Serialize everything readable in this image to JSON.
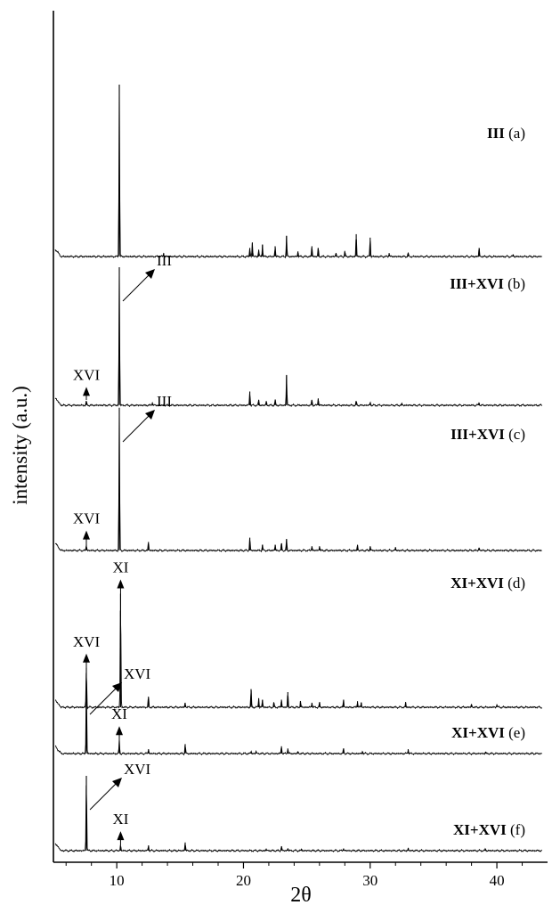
{
  "chart_data": {
    "type": "line",
    "xlabel": "2θ",
    "ylabel": "intensity (a.u.)",
    "xlim": [
      5,
      44
    ],
    "x_ticks": [
      10,
      20,
      30,
      40
    ],
    "grid": false,
    "series": [
      {
        "id": "a",
        "label_bold": "III",
        "label_rest": " (a)",
        "baseline": 0,
        "peaks": [
          [
            10.2,
            100
          ],
          [
            13.7,
            2
          ],
          [
            20.5,
            5
          ],
          [
            20.7,
            8
          ],
          [
            21.2,
            4
          ],
          [
            21.5,
            7
          ],
          [
            22.5,
            6
          ],
          [
            23.4,
            12
          ],
          [
            24.3,
            3
          ],
          [
            25.4,
            6
          ],
          [
            25.9,
            5
          ],
          [
            27.3,
            2
          ],
          [
            28.0,
            3
          ],
          [
            28.9,
            13
          ],
          [
            30.0,
            11
          ],
          [
            31.5,
            2
          ],
          [
            33.0,
            2
          ],
          [
            38.6,
            5
          ],
          [
            41.3,
            1
          ]
        ],
        "annotations": []
      },
      {
        "id": "b",
        "label_bold": "III+XVI",
        "label_rest": " (b)",
        "baseline": 1,
        "peaks": [
          [
            7.6,
            3
          ],
          [
            10.2,
            100
          ],
          [
            12.8,
            2
          ],
          [
            20.5,
            10
          ],
          [
            21.2,
            4
          ],
          [
            21.8,
            3
          ],
          [
            22.5,
            4
          ],
          [
            23.4,
            22
          ],
          [
            25.4,
            4
          ],
          [
            25.9,
            5
          ],
          [
            28.9,
            3
          ],
          [
            30.0,
            2
          ],
          [
            32.5,
            1
          ],
          [
            38.6,
            2
          ]
        ],
        "annotations": [
          {
            "text": "XVI",
            "type": "arrow-up",
            "x": 7.6
          },
          {
            "text": "III",
            "type": "diagonal",
            "x": 10.2
          }
        ]
      },
      {
        "id": "c",
        "label_bold": "III+XVI",
        "label_rest": " (c)",
        "baseline": 2,
        "peaks": [
          [
            7.6,
            4
          ],
          [
            10.2,
            100
          ],
          [
            12.5,
            6
          ],
          [
            20.5,
            9
          ],
          [
            21.5,
            4
          ],
          [
            22.5,
            4
          ],
          [
            23.0,
            5
          ],
          [
            23.4,
            8
          ],
          [
            25.4,
            3
          ],
          [
            26.0,
            3
          ],
          [
            29.0,
            4
          ],
          [
            30.0,
            3
          ],
          [
            32.0,
            2
          ],
          [
            38.6,
            2
          ]
        ],
        "annotations": [
          {
            "text": "XVI",
            "type": "arrow-up",
            "x": 7.6
          },
          {
            "text": "III",
            "type": "diagonal",
            "x": 10.2
          }
        ]
      },
      {
        "id": "d",
        "label_bold": "XI+XVI",
        "label_rest": " (d)",
        "baseline": 3,
        "peaks": [
          [
            7.6,
            26
          ],
          [
            10.3,
            75
          ],
          [
            12.5,
            7
          ],
          [
            15.4,
            3
          ],
          [
            20.6,
            12
          ],
          [
            21.2,
            6
          ],
          [
            21.5,
            5
          ],
          [
            22.4,
            3
          ],
          [
            23.0,
            5
          ],
          [
            23.5,
            10
          ],
          [
            24.5,
            4
          ],
          [
            25.4,
            3
          ],
          [
            26.0,
            3
          ],
          [
            27.9,
            5
          ],
          [
            29.0,
            4
          ],
          [
            29.3,
            3
          ],
          [
            32.8,
            3
          ],
          [
            38.0,
            2
          ],
          [
            40.0,
            2
          ]
        ],
        "annotations": [
          {
            "text": "XVI",
            "type": "arrow-up",
            "x": 7.6
          },
          {
            "text": "XI",
            "type": "arrow-up",
            "x": 10.3
          }
        ]
      },
      {
        "id": "e",
        "label_bold": "XI+XVI",
        "label_rest": " (e)",
        "baseline": 4,
        "peaks": [
          [
            7.6,
            100
          ],
          [
            10.2,
            18
          ],
          [
            12.5,
            6
          ],
          [
            15.4,
            13
          ],
          [
            20.6,
            3
          ],
          [
            21.0,
            3
          ],
          [
            23.0,
            10
          ],
          [
            23.5,
            7
          ],
          [
            24.3,
            3
          ],
          [
            27.9,
            7
          ],
          [
            29.4,
            3
          ],
          [
            33.0,
            6
          ],
          [
            39.1,
            2
          ]
        ],
        "annotations": [
          {
            "text": "XVI",
            "type": "diagonal",
            "x": 7.6
          },
          {
            "text": "XI",
            "type": "arrow-up",
            "x": 10.2
          }
        ]
      },
      {
        "id": "f",
        "label_bold": "XI+XVI",
        "label_rest": " (f)",
        "baseline": 5,
        "peaks": [
          [
            7.6,
            100
          ],
          [
            10.3,
            7
          ],
          [
            12.5,
            7
          ],
          [
            15.4,
            11
          ],
          [
            21.8,
            2
          ],
          [
            23.0,
            6
          ],
          [
            23.5,
            3
          ],
          [
            24.6,
            2
          ],
          [
            27.9,
            3
          ],
          [
            33.0,
            3
          ],
          [
            39.1,
            2
          ]
        ],
        "annotations": [
          {
            "text": "XVI",
            "type": "diagonal",
            "x": 7.6
          },
          {
            "text": "XI",
            "type": "arrow-up",
            "x": 10.3
          }
        ]
      }
    ]
  }
}
